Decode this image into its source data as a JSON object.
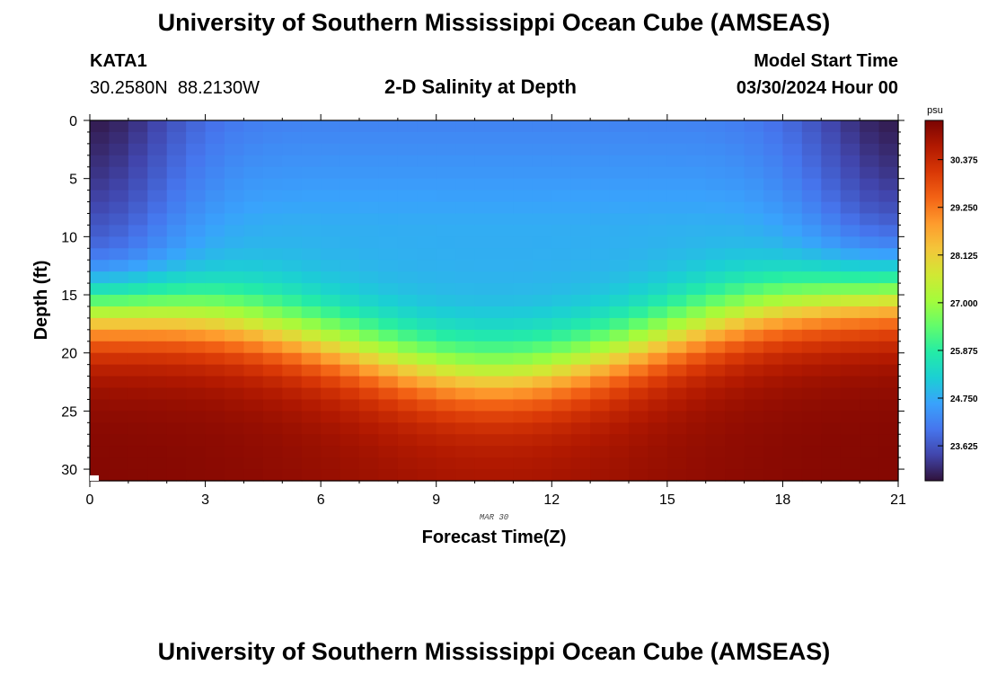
{
  "page": {
    "title": "University of Southern Mississippi Ocean Cube (AMSEAS)",
    "footer_title": "University of Southern Mississippi Ocean Cube (AMSEAS)",
    "station": "KATA1",
    "coords_lat": "30.2580N",
    "coords_lon": "88.2130W",
    "subtitle": "2-D Salinity at Depth",
    "model_start_label": "Model Start Time",
    "model_start_value": "03/30/2024 Hour 00"
  },
  "chart_data": {
    "type": "heatmap",
    "title": "2-D Salinity at Depth",
    "xlabel": "Forecast Time(Z)",
    "ylabel": "Depth (ft)",
    "date_label": "MAR 30",
    "xlim": [
      0,
      21
    ],
    "ylim": [
      0,
      31
    ],
    "y_inverted": true,
    "x_ticks": [
      0,
      3,
      6,
      9,
      12,
      15,
      18,
      21
    ],
    "x_tick_labels": [
      "0",
      "3",
      "6",
      "9",
      "12",
      "15",
      "18",
      "21"
    ],
    "y_ticks": [
      0,
      5,
      10,
      15,
      20,
      25,
      30
    ],
    "y_tick_labels": [
      "0",
      "5",
      "10",
      "15",
      "20",
      "25",
      "30"
    ],
    "x_cell_step_hours": 0.5,
    "y_cell_step_ft": 1,
    "colorbar": {
      "unit": "psu",
      "min": 22.8,
      "max": 31.3,
      "tick_values": [
        30.375,
        29.25,
        28.125,
        27.0,
        25.875,
        24.75,
        23.625
      ],
      "tick_labels": [
        "30.375",
        "29.250",
        "28.125",
        "27.000",
        "25.875",
        "24.750",
        "23.625"
      ],
      "colors": [
        "#30123b",
        "#4145ab",
        "#4675ed",
        "#39a2fc",
        "#1bcfd4",
        "#24eca6",
        "#61fc6c",
        "#a4fc3b",
        "#d1e834",
        "#f3c63a",
        "#fe9b2d",
        "#f36315",
        "#d93806",
        "#b11901",
        "#7a0402"
      ]
    },
    "field_model": {
      "description": "estimated salinity (psu) by depth and forecast hour; surface layer freshest at hours 0-2 and 20-21, halocline deepest near hour 10-11",
      "surface_psu_hour0": 22.9,
      "surface_psu_midday": 24.2,
      "halocline_depth_ft_hour0": 16,
      "halocline_depth_ft_hour10": 21.5,
      "halocline_depth_ft_hour21": 14.5,
      "bottom_psu": 31.2
    }
  }
}
